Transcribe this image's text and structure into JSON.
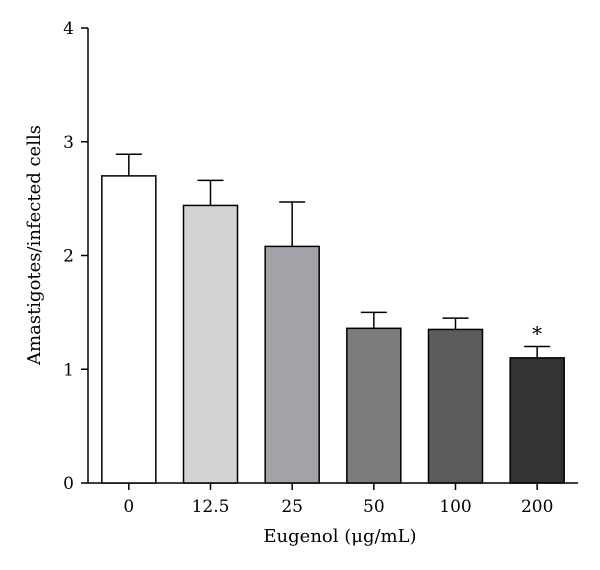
{
  "chart_data": {
    "type": "bar",
    "xlabel": "Eugenol (μg/mL)",
    "ylabel": "Amastigotes/infected cells",
    "ylim": [
      0,
      4
    ],
    "yticks": [
      "0",
      "1",
      "2",
      "3",
      "4"
    ],
    "grid": false,
    "categories": [
      "0",
      "12.5",
      "25",
      "50",
      "100",
      "200"
    ],
    "values": [
      2.7,
      2.44,
      2.08,
      1.36,
      1.35,
      1.1
    ],
    "errors": [
      0.19,
      0.22,
      0.39,
      0.14,
      0.1,
      0.1
    ],
    "colors": [
      "#ffffff",
      "#d4d4d4",
      "#a2a2a8",
      "#7c7c7c",
      "#5c5c5c",
      "#333333"
    ],
    "annotations": [
      {
        "category": "200",
        "text": "*"
      }
    ]
  }
}
